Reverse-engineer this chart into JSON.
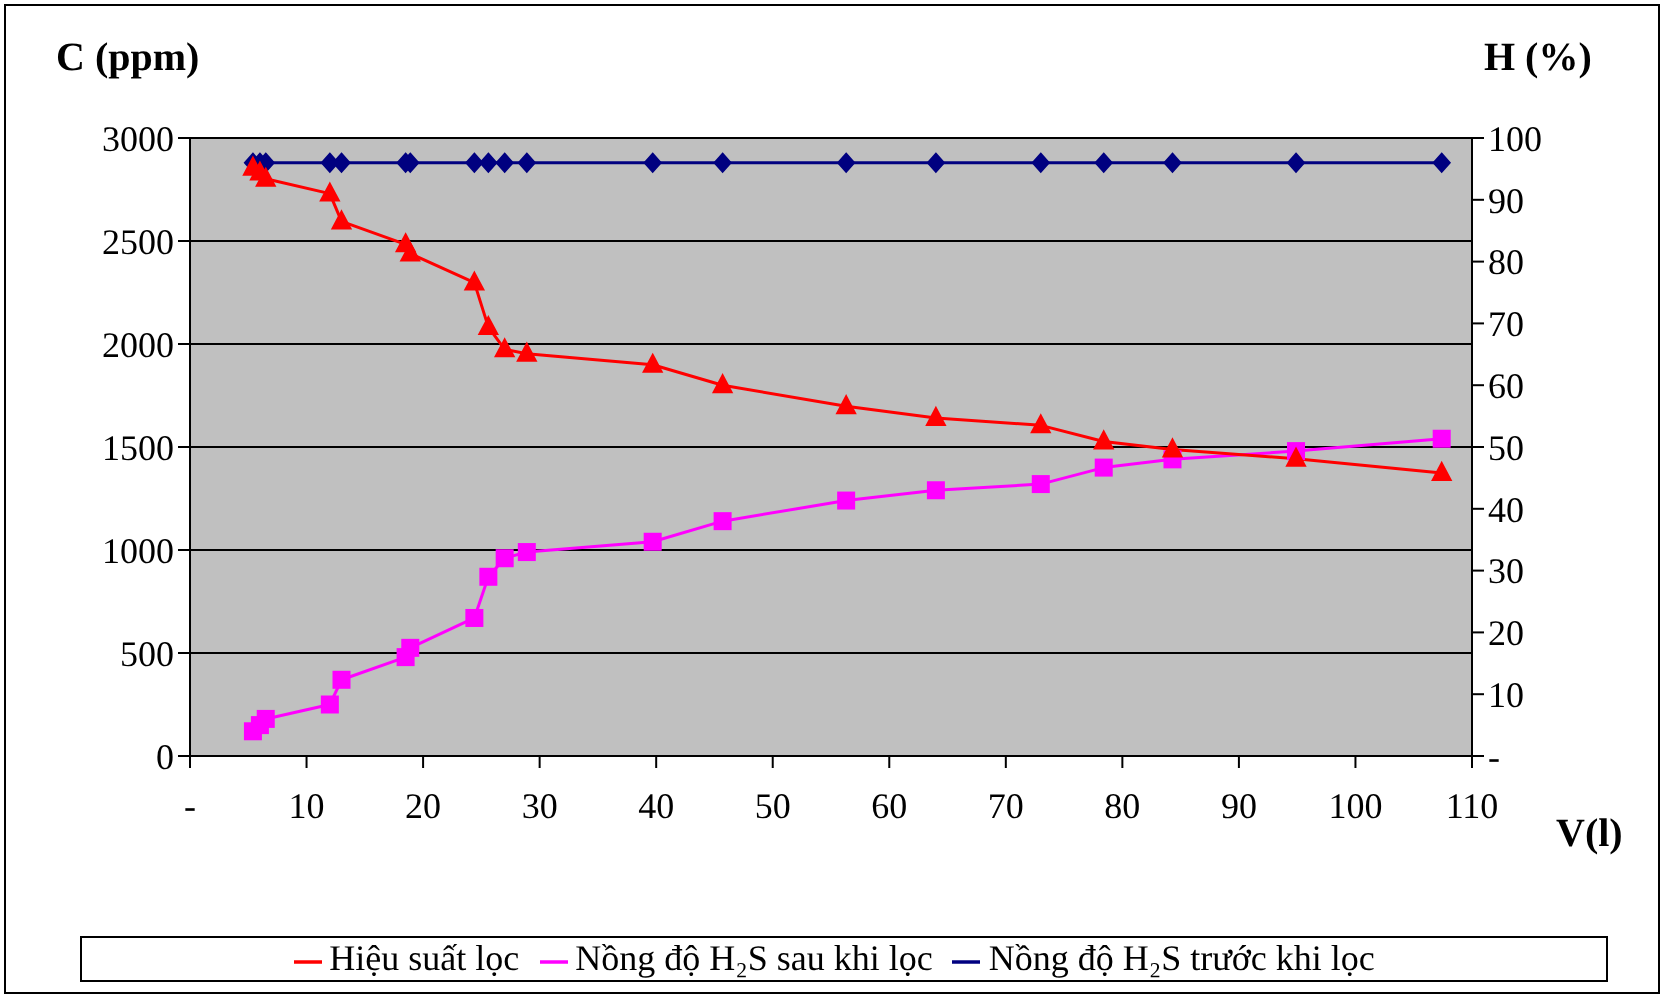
{
  "chart_data": {
    "type": "line",
    "xlabel": "V(l)",
    "ylabel": "C (ppm)",
    "y2label": "H (%)",
    "x": [
      5.4,
      6,
      6.5,
      12,
      13,
      18.5,
      18.9,
      24.4,
      25.6,
      27,
      28.9,
      39.7,
      45.7,
      56.3,
      64,
      73,
      78.4,
      84.3,
      94.9,
      107.4
    ],
    "xlim": [
      0,
      110
    ],
    "xticks": [
      {
        "value": 0,
        "label": "-"
      },
      10,
      20,
      30,
      40,
      50,
      60,
      70,
      80,
      90,
      100,
      110
    ],
    "ylim": [
      0,
      3000
    ],
    "yticks": [
      0,
      500,
      1000,
      1500,
      2000,
      2500,
      3000
    ],
    "y2lim": [
      0,
      100
    ],
    "y2ticks": [
      {
        "value": 0,
        "label": "-"
      },
      10,
      20,
      30,
      40,
      50,
      60,
      70,
      80,
      90,
      100
    ],
    "grid": "y",
    "legend": "bottom",
    "series": [
      {
        "name": "Nồng độ H₂S trước khi lọc",
        "color": "#000080",
        "marker": "diamond",
        "values": [
          2880,
          2880,
          2880,
          2880,
          2880,
          2880,
          2880,
          2880,
          2880,
          2880,
          2880,
          2880,
          2880,
          2880,
          2880,
          2880,
          2880,
          2880,
          2880,
          2880
        ]
      },
      {
        "name": "Nồng độ H₂S sau khi lọc",
        "color": "#ff00ff",
        "marker": "square",
        "values": [
          120,
          150,
          180,
          250,
          370,
          480,
          525,
          670,
          870,
          960,
          990,
          1040,
          1140,
          1240,
          1290,
          1320,
          1400,
          1440,
          1480,
          1540
        ]
      },
      {
        "name": "Hiệu suất lọc",
        "color": "#ff0000",
        "marker": "triangle",
        "axis": "y2",
        "values": [
          95.2,
          94.4,
          93.4,
          91,
          86.5,
          82.8,
          81.3,
          76.6,
          69.4,
          65.8,
          65.1,
          63.3,
          60,
          56.6,
          54.7,
          53.5,
          50.9,
          49.6,
          48.1,
          45.8
        ]
      }
    ]
  }
}
